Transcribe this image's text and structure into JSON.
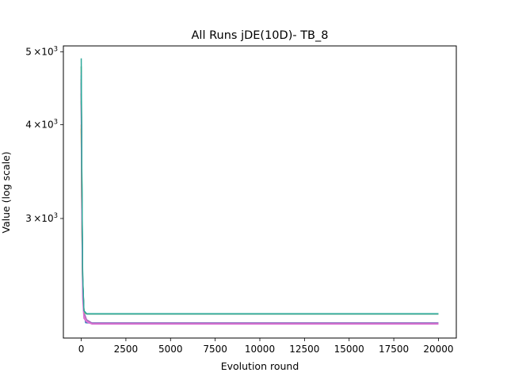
{
  "chart_data": {
    "type": "line",
    "title": "All Runs jDE(10D)- TB_8",
    "xlabel": "Evolution round",
    "ylabel": "Value (log scale)",
    "y_scale": "log",
    "grid": false,
    "legend": "none",
    "xlim": [
      -1000,
      21000
    ],
    "ylim": [
      2080,
      5090
    ],
    "x_ticks": [
      0,
      2500,
      5000,
      7500,
      10000,
      12500,
      15000,
      17500,
      20000
    ],
    "x_tick_labels": [
      "0",
      "2500",
      "5000",
      "7500",
      "10000",
      "12500",
      "15000",
      "17500",
      "20000"
    ],
    "y_ticks": [
      3000,
      4000,
      5000
    ],
    "y_tick_labels": [
      {
        "base": "3",
        "mid": "×10",
        "exp": "3"
      },
      {
        "base": "4",
        "mid": "×10",
        "exp": "3"
      },
      {
        "base": "5",
        "mid": "×10",
        "exp": "3"
      }
    ],
    "series": [
      {
        "color": "#1f77b4",
        "x": [
          0,
          30,
          80,
          150,
          250,
          500,
          20000
        ],
        "y": [
          4550,
          3400,
          2500,
          2250,
          2180,
          2178,
          2178
        ]
      },
      {
        "color": "#ff7f0e",
        "x": [
          0,
          30,
          80,
          150,
          300,
          20000
        ],
        "y": [
          4000,
          3100,
          2450,
          2260,
          2240,
          2240
        ]
      },
      {
        "color": "#2ca02c",
        "x": [
          0,
          30,
          80,
          150,
          300,
          20000
        ],
        "y": [
          4780,
          3500,
          2500,
          2260,
          2240,
          2240
        ]
      },
      {
        "color": "#d62728",
        "x": [
          0,
          30,
          80,
          150,
          300,
          20000
        ],
        "y": [
          4600,
          3300,
          2480,
          2255,
          2240,
          2240
        ]
      },
      {
        "color": "#9467bd",
        "x": [
          0,
          30,
          80,
          150,
          300,
          600,
          20000
        ],
        "y": [
          4500,
          3300,
          2450,
          2250,
          2200,
          2178,
          2178
        ]
      },
      {
        "color": "#8c564b",
        "x": [
          0,
          30,
          80,
          150,
          300,
          20000
        ],
        "y": [
          4400,
          3200,
          2460,
          2255,
          2240,
          2240
        ]
      },
      {
        "color": "#e377c2",
        "x": [
          0,
          30,
          80,
          150,
          300,
          600,
          20000
        ],
        "y": [
          4700,
          3300,
          2400,
          2230,
          2190,
          2173,
          2173
        ]
      },
      {
        "color": "#7f7f7f",
        "x": [
          0,
          30,
          80,
          150,
          300,
          20000
        ],
        "y": [
          4300,
          3200,
          2460,
          2255,
          2240,
          2240
        ]
      },
      {
        "color": "#bcbd22",
        "x": [
          0,
          30,
          80,
          150,
          300,
          20000
        ],
        "y": [
          3950,
          3050,
          2430,
          2250,
          2240,
          2240
        ]
      },
      {
        "color": "#17becf",
        "x": [
          0,
          30,
          80,
          150,
          300,
          20000
        ],
        "y": [
          4650,
          3400,
          2490,
          2258,
          2240,
          2240
        ]
      },
      {
        "color": "#da70d6",
        "x": [
          0,
          30,
          80,
          150,
          300,
          600,
          20000
        ],
        "y": [
          4250,
          3100,
          2350,
          2210,
          2185,
          2171,
          2171
        ]
      },
      {
        "color": "#2ca89a",
        "x": [
          0,
          30,
          80,
          150,
          300,
          20000
        ],
        "y": [
          4900,
          3550,
          2520,
          2262,
          2241,
          2241
        ]
      }
    ]
  }
}
